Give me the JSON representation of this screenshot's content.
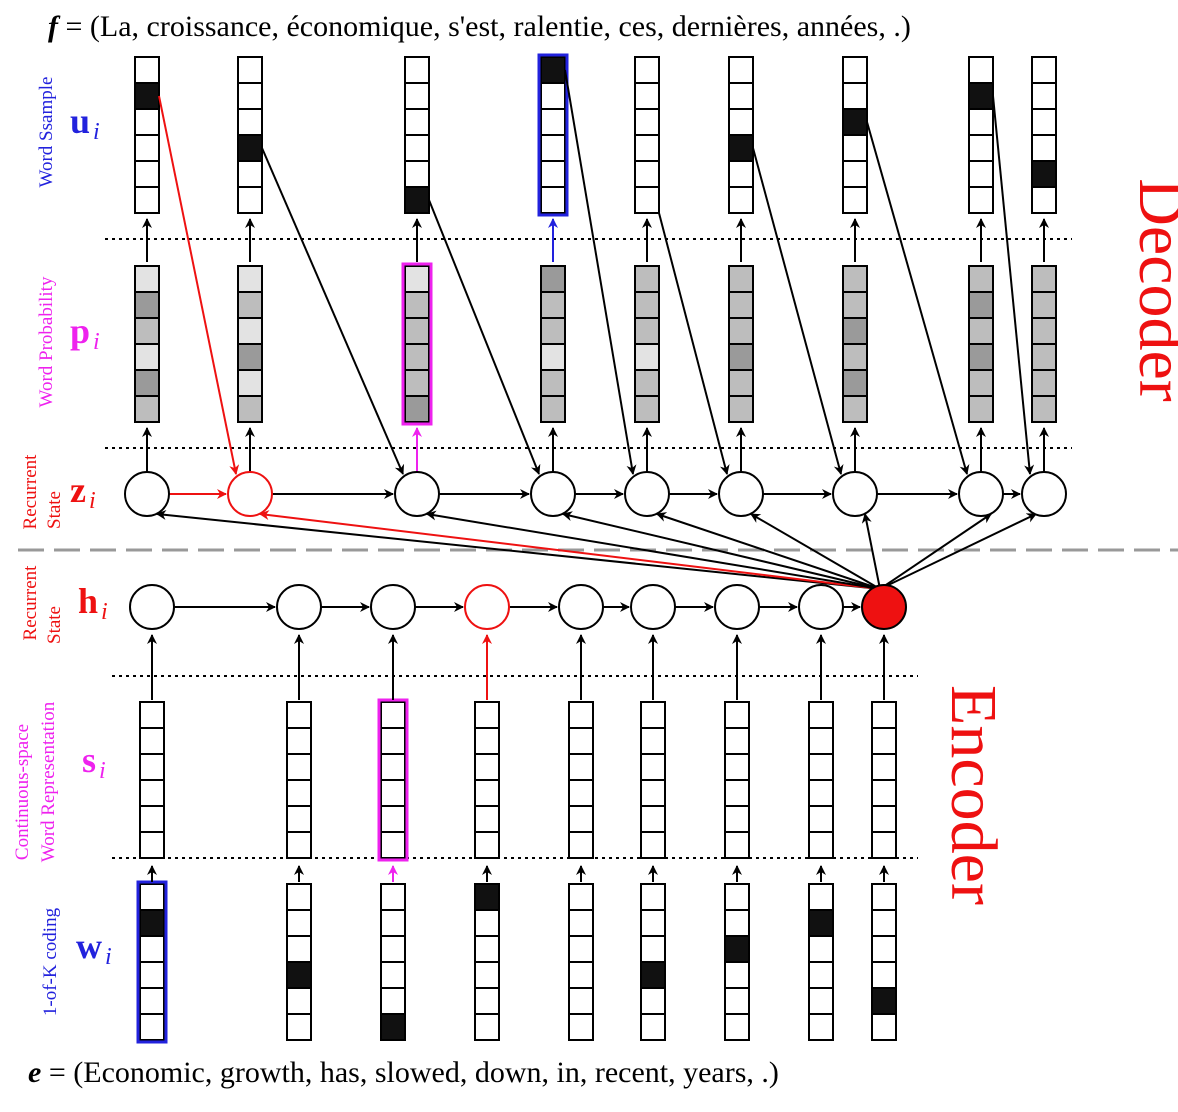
{
  "top_sentence": {
    "var": "f",
    "text": " = (La, croissance, économique, s'est, ralentie, ces, dernières, années, .)"
  },
  "bottom_sentence": {
    "var": "e",
    "text": " = (Economic, growth, has, slowed, down, in, recent, years, .)"
  },
  "sections": {
    "decoder": "Decoder",
    "encoder": "Encoder"
  },
  "rows": {
    "u": {
      "symbol": "u",
      "sub": "i",
      "caption": [
        "Word Ssample"
      ]
    },
    "p": {
      "symbol": "p",
      "sub": "i",
      "caption": [
        "Word Probability"
      ]
    },
    "z": {
      "symbol": "z",
      "sub": "i",
      "caption": [
        "Recurrent",
        "State"
      ]
    },
    "h": {
      "symbol": "h",
      "sub": "i",
      "caption": [
        "Recurrent",
        "State"
      ]
    },
    "s": {
      "symbol": "s",
      "sub": "i",
      "caption": [
        "Continuous-space",
        "Word Representation"
      ]
    },
    "w": {
      "symbol": "w",
      "sub": "i",
      "caption": [
        "1-of-K coding"
      ]
    }
  },
  "colors": {
    "blue": "#2222dd",
    "magenta": "#ee22ee",
    "red": "#ee1111",
    "black": "#000000",
    "dark_fill": "#111111",
    "gray_dark": "#9a9a9a",
    "gray_mid": "#bdbdbd",
    "gray_light": "#e3e3e3"
  },
  "decoder_u_active_cell": [
    1,
    3,
    5,
    0,
    -1,
    3,
    2,
    1,
    4
  ],
  "decoder_p_shading": [
    [
      0,
      2,
      1,
      0,
      2,
      1,
      0
    ],
    [
      0,
      1,
      0,
      2,
      0,
      1,
      0
    ],
    [
      0,
      1,
      1,
      1,
      1,
      2,
      0
    ],
    [
      2,
      1,
      1,
      0,
      1,
      1,
      0
    ],
    [
      1,
      1,
      1,
      0,
      1,
      1,
      0
    ],
    [
      1,
      1,
      1,
      2,
      1,
      1,
      0
    ],
    [
      1,
      1,
      2,
      1,
      2,
      1,
      0
    ],
    [
      1,
      2,
      1,
      2,
      1,
      1,
      0
    ],
    [
      1,
      1,
      1,
      1,
      1,
      1,
      0
    ]
  ],
  "encoder_w_active_cell": [
    1,
    3,
    5,
    0,
    -1,
    3,
    2,
    1,
    4
  ]
}
